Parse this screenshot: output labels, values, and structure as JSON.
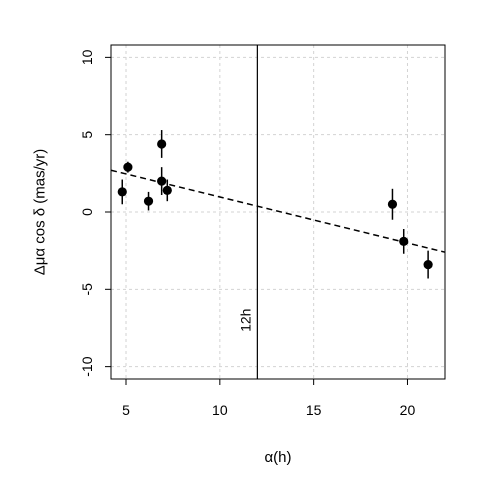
{
  "chart_data": {
    "type": "scatter",
    "xlabel": "α(h)",
    "ylabel": "Δμα cos δ (mas/yr)",
    "xlim": [
      4.2,
      22
    ],
    "ylim": [
      -10.8,
      10.8
    ],
    "x_ticks": [
      5,
      10,
      15,
      20
    ],
    "y_ticks": [
      -10,
      -5,
      0,
      5,
      10
    ],
    "grid": true,
    "points": [
      {
        "x": 4.8,
        "y": 1.3,
        "err": 0.8
      },
      {
        "x": 5.1,
        "y": 2.9,
        "err": 0.35
      },
      {
        "x": 6.2,
        "y": 0.7,
        "err": 0.6
      },
      {
        "x": 6.9,
        "y": 4.4,
        "err": 0.9
      },
      {
        "x": 6.9,
        "y": 2.0,
        "err": 0.9
      },
      {
        "x": 7.2,
        "y": 1.4,
        "err": 0.7
      },
      {
        "x": 19.2,
        "y": 0.5,
        "err": 1.0
      },
      {
        "x": 19.8,
        "y": -1.9,
        "err": 0.8
      },
      {
        "x": 21.1,
        "y": -3.4,
        "err": 0.9
      }
    ],
    "trend_line": {
      "style": "dashed",
      "x": [
        4.2,
        22
      ],
      "y": [
        2.7,
        -2.6
      ]
    },
    "vertical_line": {
      "x": 12,
      "label": "12h"
    }
  }
}
